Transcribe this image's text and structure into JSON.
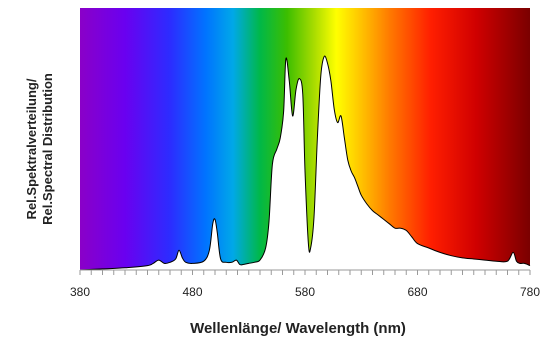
{
  "chart_data": {
    "type": "area",
    "title": "",
    "xlabel": "Wellenlänge/ Wavelength (nm)",
    "ylabel_lines": [
      "Rel.Spektralverteilung/",
      "Rel.Spectral Distribution"
    ],
    "xlim": [
      380,
      780
    ],
    "ylim": [
      0,
      1
    ],
    "x_ticks": [
      380,
      480,
      580,
      680,
      780
    ],
    "x_tick_labels": [
      "380",
      "480",
      "580",
      "680",
      "780"
    ],
    "background": "visible spectrum gradient (violet to dark red)",
    "fill_color": "#ffffff",
    "line_color": "#000000",
    "grid": false,
    "legend": "none",
    "series": [
      {
        "x": [
          380,
          400,
          420,
          440,
          445,
          450,
          455,
          460,
          465,
          468,
          471,
          474,
          480,
          490,
          495,
          498,
          500,
          502,
          505,
          510,
          515,
          519,
          522,
          525,
          530,
          535,
          540,
          545,
          548,
          551,
          555,
          558,
          561,
          563,
          566,
          569,
          572,
          575,
          578,
          580,
          583,
          585,
          588,
          591,
          594,
          597,
          600,
          603,
          606,
          609,
          612,
          615,
          618,
          621,
          624,
          627,
          630,
          635,
          640,
          645,
          650,
          655,
          660,
          665,
          670,
          675,
          680,
          690,
          700,
          710,
          720,
          730,
          740,
          750,
          760,
          765,
          768,
          771,
          775,
          780
        ],
        "y": [
          0.0,
          0.005,
          0.01,
          0.02,
          0.03,
          0.045,
          0.03,
          0.035,
          0.05,
          0.09,
          0.055,
          0.035,
          0.03,
          0.04,
          0.09,
          0.21,
          0.23,
          0.17,
          0.05,
          0.035,
          0.035,
          0.045,
          0.025,
          0.025,
          0.03,
          0.035,
          0.045,
          0.1,
          0.22,
          0.48,
          0.55,
          0.6,
          0.72,
          0.96,
          0.86,
          0.7,
          0.82,
          0.87,
          0.8,
          0.45,
          0.12,
          0.1,
          0.24,
          0.6,
          0.88,
          0.97,
          0.94,
          0.86,
          0.73,
          0.67,
          0.7,
          0.6,
          0.5,
          0.45,
          0.42,
          0.38,
          0.34,
          0.3,
          0.27,
          0.25,
          0.23,
          0.21,
          0.19,
          0.19,
          0.18,
          0.15,
          0.12,
          0.1,
          0.08,
          0.065,
          0.055,
          0.05,
          0.045,
          0.04,
          0.04,
          0.08,
          0.04,
          0.03,
          0.03,
          0.02
        ]
      }
    ]
  }
}
